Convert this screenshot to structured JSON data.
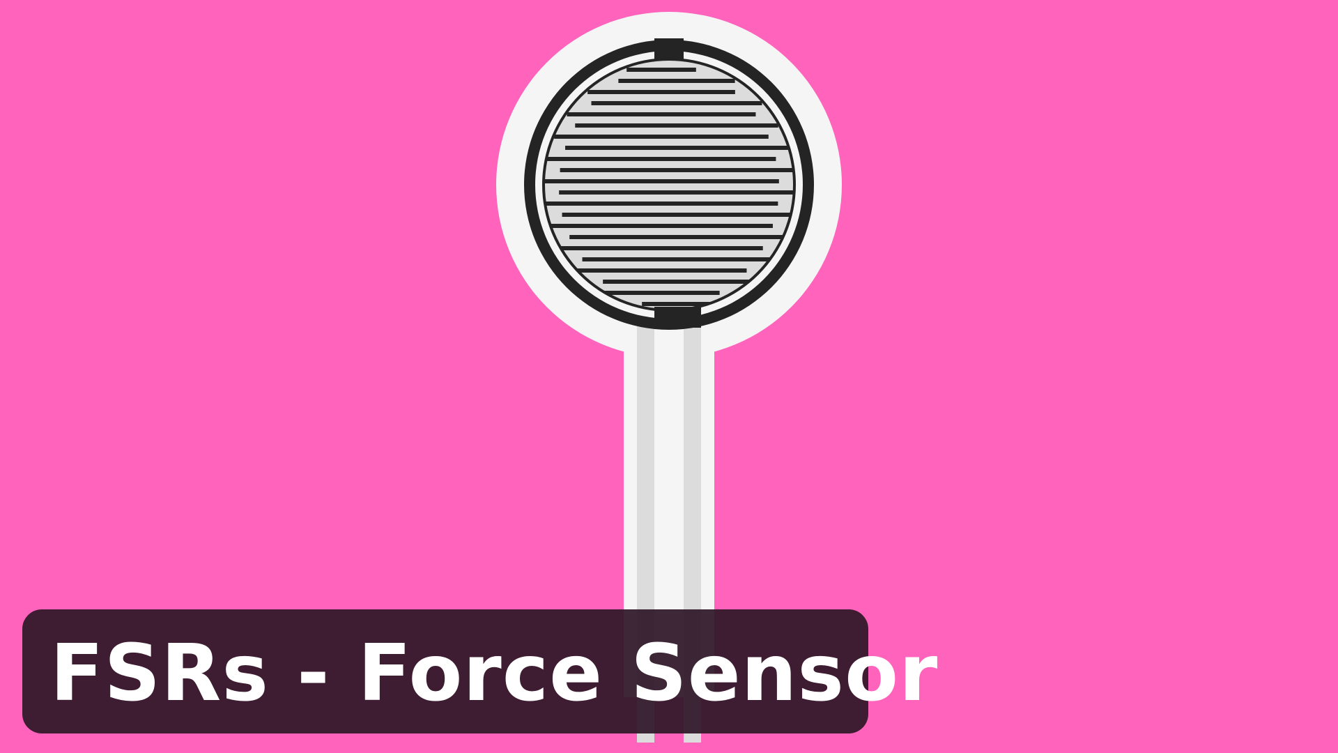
{
  "banner": {
    "title": "FSRs - Force Sensor"
  },
  "illustration": {
    "icon": "force-sensitive-resistor-icon",
    "colors": {
      "background": "#ff63bc",
      "substrate": "#f5f5f5",
      "ink": "#242424",
      "trace": "#dcdcdc"
    }
  }
}
